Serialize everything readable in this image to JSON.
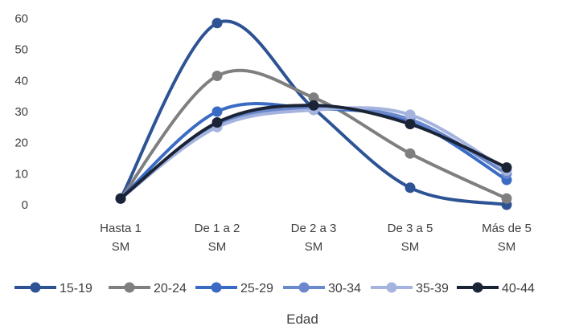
{
  "chart_data": {
    "type": "line",
    "smooth": true,
    "categories": [
      [
        "Hasta 1",
        "SM"
      ],
      [
        "De 1 a 2",
        "SM"
      ],
      [
        "De 2 a 3",
        "SM"
      ],
      [
        "De 3 a 5",
        "SM"
      ],
      [
        "Más de 5",
        "SM"
      ]
    ],
    "xlabel": "Edad",
    "ylabel": "",
    "title": "",
    "ylim": [
      0,
      60
    ],
    "yticks": [
      0,
      10,
      20,
      30,
      40,
      50,
      60
    ],
    "grid": false,
    "legend_position": "bottom",
    "series": [
      {
        "name": "15-19",
        "color": "#2e5395",
        "values": [
          2,
          58.5,
          31,
          5.5,
          0
        ]
      },
      {
        "name": "20-24",
        "color": "#7f7f7f",
        "values": [
          2,
          41.5,
          34.5,
          16.5,
          2
        ]
      },
      {
        "name": "25-29",
        "color": "#3a6bc4",
        "values": [
          2,
          30,
          31,
          27,
          8
        ]
      },
      {
        "name": "30-34",
        "color": "#6a88cc",
        "values": [
          2,
          26,
          31,
          27.5,
          10
        ]
      },
      {
        "name": "35-39",
        "color": "#a5b4df",
        "values": [
          2,
          25,
          30.5,
          29,
          11
        ]
      },
      {
        "name": "40-44",
        "color": "#1b2437",
        "values": [
          2,
          26.5,
          32,
          26,
          12
        ]
      }
    ]
  }
}
